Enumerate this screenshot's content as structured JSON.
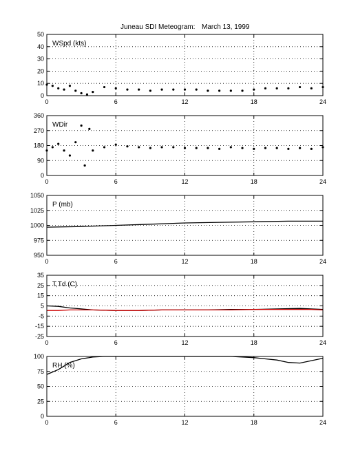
{
  "title": "Juneau SDI Meteogram:",
  "date": "March 13, 1999",
  "chart_data": [
    {
      "type": "scatter",
      "label": "WSpd (kts)",
      "xlim": [
        0,
        24
      ],
      "ylim": [
        0,
        50
      ],
      "xticks": [
        "0",
        "6",
        "12",
        "18",
        "24"
      ],
      "yticks": [
        "0",
        "10",
        "20",
        "30",
        "40",
        "50"
      ],
      "grid": true,
      "series": [
        {
          "color": "#000000",
          "x": [
            0,
            0.5,
            1,
            1.5,
            2,
            2.5,
            3,
            3.5,
            4,
            5,
            6,
            7,
            8,
            9,
            10,
            11,
            12,
            13,
            14,
            15,
            16,
            17,
            18,
            19,
            20,
            21,
            22,
            23,
            24
          ],
          "y": [
            9,
            8,
            6,
            5,
            8,
            4,
            2,
            1,
            3,
            7,
            6,
            5,
            5,
            4,
            5,
            5,
            5,
            5,
            4,
            4,
            4,
            4,
            5,
            6,
            6,
            6,
            7,
            6,
            7
          ]
        }
      ]
    },
    {
      "type": "scatter",
      "label": "WDir",
      "xlim": [
        0,
        24
      ],
      "ylim": [
        0,
        360
      ],
      "xticks": [
        "0",
        "6",
        "12",
        "18",
        "24"
      ],
      "yticks": [
        "0",
        "90",
        "180",
        "270",
        "360"
      ],
      "grid": true,
      "series": [
        {
          "color": "#000000",
          "x": [
            0,
            0.5,
            1,
            1.5,
            2,
            2.5,
            3,
            3.3,
            3.7,
            4,
            5,
            6,
            7,
            8,
            9,
            10,
            11,
            12,
            13,
            14,
            15,
            16,
            17,
            18,
            19,
            20,
            21,
            22,
            23,
            24
          ],
          "y": [
            150,
            170,
            190,
            150,
            120,
            200,
            300,
            60,
            280,
            150,
            170,
            185,
            175,
            170,
            165,
            170,
            170,
            165,
            165,
            165,
            160,
            170,
            165,
            160,
            165,
            165,
            160,
            165,
            160,
            170
          ]
        }
      ]
    },
    {
      "type": "line",
      "label": "P (mb)",
      "xlim": [
        0,
        24
      ],
      "ylim": [
        950,
        1050
      ],
      "xticks": [
        "0",
        "6",
        "12",
        "18",
        "24"
      ],
      "yticks": [
        "950",
        "975",
        "1000",
        "1025",
        "1050"
      ],
      "grid": true,
      "series": [
        {
          "color": "#000000",
          "x": [
            0,
            3,
            6,
            9,
            12,
            15,
            18,
            21,
            24
          ],
          "y": [
            997,
            998,
            1000,
            1002,
            1004,
            1005,
            1006,
            1007,
            1007
          ]
        }
      ]
    },
    {
      "type": "line",
      "label": "T,Td (C)",
      "xlim": [
        0,
        24
      ],
      "ylim": [
        -25,
        35
      ],
      "xticks": [
        "0",
        "6",
        "12",
        "18",
        "24"
      ],
      "yticks": [
        "-25",
        "-15",
        "-5",
        "5",
        "15",
        "25",
        "35"
      ],
      "grid": true,
      "series": [
        {
          "color": "#000000",
          "x": [
            0,
            1,
            2,
            3,
            4,
            6,
            8,
            10,
            12,
            14,
            16,
            18,
            20,
            22,
            23,
            24
          ],
          "y": [
            5,
            4.5,
            3,
            2,
            1,
            0.5,
            0.5,
            1,
            1,
            1,
            1.5,
            1.5,
            2,
            2.5,
            2,
            1.5
          ]
        },
        {
          "color": "#cc0000",
          "x": [
            0,
            1,
            2,
            3,
            4,
            6,
            8,
            10,
            12,
            14,
            16,
            18,
            20,
            22,
            23,
            24
          ],
          "y": [
            0.5,
            0.5,
            1,
            1,
            1,
            0.5,
            0.5,
            1,
            1,
            1,
            1,
            1.5,
            1.5,
            1.5,
            1.5,
            1
          ]
        }
      ]
    },
    {
      "type": "line",
      "label": "RH (%)",
      "xlim": [
        0,
        24
      ],
      "ylim": [
        0,
        100
      ],
      "xticks": [
        "0",
        "6",
        "12",
        "18",
        "24"
      ],
      "yticks": [
        "0",
        "25",
        "50",
        "75",
        "100"
      ],
      "grid": true,
      "series": [
        {
          "color": "#000000",
          "x": [
            0,
            0.5,
            1,
            1.5,
            2,
            3,
            4,
            5,
            6,
            8,
            10,
            12,
            14,
            16,
            17,
            18,
            19,
            20,
            21,
            22,
            23,
            24
          ],
          "y": [
            70,
            74,
            78,
            84,
            90,
            96,
            99,
            100,
            100,
            100,
            100,
            100,
            100,
            100,
            99,
            98,
            96,
            94,
            90,
            89,
            93,
            97
          ]
        }
      ]
    }
  ]
}
